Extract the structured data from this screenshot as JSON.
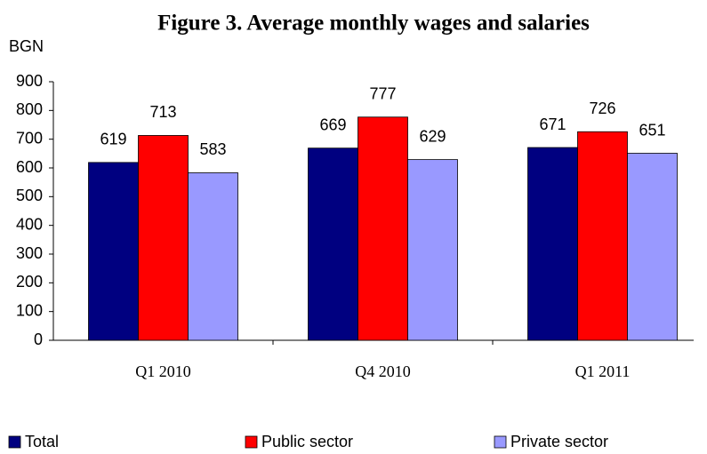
{
  "chart_data": {
    "type": "bar",
    "title": "Figure 3. Average monthly wages and salaries",
    "y_label": "BGN",
    "categories": [
      "Q1 2010",
      "Q4 2010",
      "Q1 2011"
    ],
    "series": [
      {
        "name": "Total",
        "color": "#000080",
        "values": [
          619,
          669,
          671
        ]
      },
      {
        "name": "Public sector",
        "color": "#ff0000",
        "values": [
          713,
          777,
          726
        ]
      },
      {
        "name": "Private sector",
        "color": "#9999ff",
        "values": [
          583,
          629,
          651
        ]
      }
    ],
    "ylim": [
      0,
      900
    ],
    "yticks": [
      0,
      100,
      200,
      300,
      400,
      500,
      600,
      700,
      800,
      900
    ],
    "legend": "bottom"
  }
}
